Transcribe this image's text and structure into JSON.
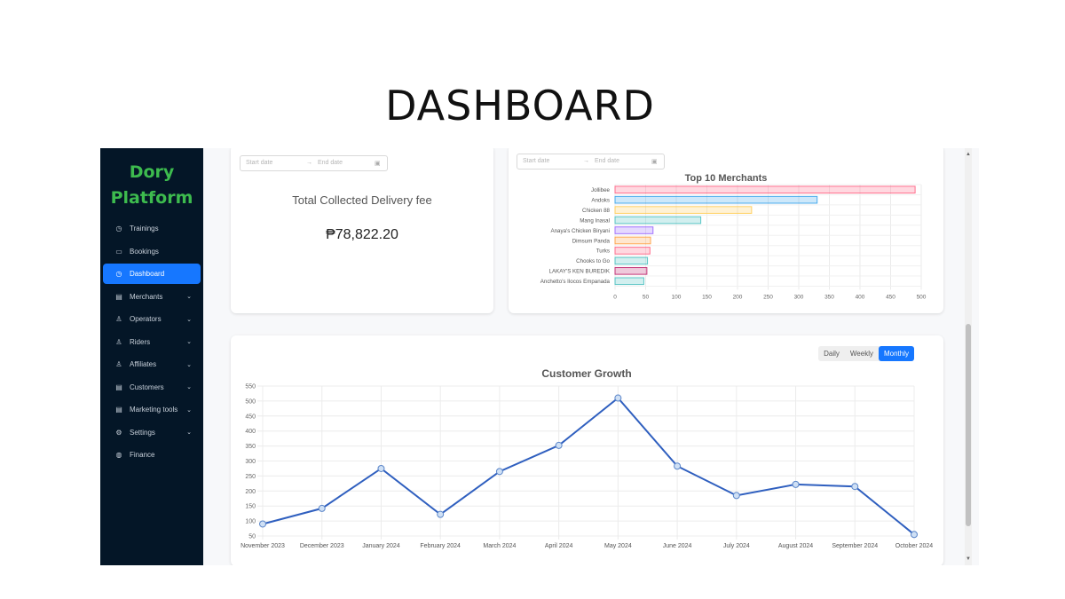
{
  "page_title": "DASHBOARD",
  "sidebar": {
    "brand": "Dory Platform",
    "items": [
      {
        "label": "Trainings",
        "icon": "clock-icon",
        "glyph": "◷",
        "chevron": false,
        "active": false
      },
      {
        "label": "Bookings",
        "icon": "calendar-icon",
        "glyph": "▭",
        "chevron": false,
        "active": false
      },
      {
        "label": "Dashboard",
        "icon": "dashboard-icon",
        "glyph": "◷",
        "chevron": false,
        "active": true
      },
      {
        "label": "Merchants",
        "icon": "table-icon",
        "glyph": "▤",
        "chevron": true,
        "active": false
      },
      {
        "label": "Operators",
        "icon": "user-icon",
        "glyph": "♙",
        "chevron": true,
        "active": false
      },
      {
        "label": "Riders",
        "icon": "user-icon",
        "glyph": "♙",
        "chevron": true,
        "active": false
      },
      {
        "label": "Affiliates",
        "icon": "user-icon",
        "glyph": "♙",
        "chevron": true,
        "active": false
      },
      {
        "label": "Customers",
        "icon": "table-icon",
        "glyph": "▤",
        "chevron": true,
        "active": false
      },
      {
        "label": "Marketing tools",
        "icon": "table-icon",
        "glyph": "▤",
        "chevron": true,
        "active": false
      },
      {
        "label": "Settings",
        "icon": "gear-icon",
        "glyph": "⚙",
        "chevron": true,
        "active": false
      },
      {
        "label": "Finance",
        "icon": "wallet-icon",
        "glyph": "◍",
        "chevron": false,
        "active": false
      }
    ]
  },
  "delivery_card": {
    "start_placeholder": "Start date",
    "end_placeholder": "End date",
    "title": "Total Collected Delivery fee",
    "value": "₱78,822.20"
  },
  "merchants_card": {
    "start_placeholder": "Start date",
    "end_placeholder": "End date"
  },
  "growth_card": {
    "toggles": [
      "Daily",
      "Weekly",
      "Monthly"
    ],
    "selected": "Monthly"
  },
  "colors": {
    "sidebar_bg": "#041627",
    "brand_green": "#3dbb4e",
    "accent_blue": "#1677ff",
    "line_blue": "#2f5fbf"
  },
  "chart_data": [
    {
      "type": "bar",
      "orientation": "horizontal",
      "title": "Top 10 Merchants",
      "categories": [
        "Jollibee",
        "Andoks",
        "Chicken 88",
        "Mang Inasal",
        "Anaya's Chicken Biryani",
        "Dimsum Panda",
        "Turks",
        "Chooks to Go",
        "LAKAY'S KEN BUREDIK",
        "Anchetto's Ilocos Empanada"
      ],
      "values": [
        490,
        330,
        223,
        140,
        62,
        58,
        57,
        53,
        52,
        47
      ],
      "colors": [
        "#ff6384",
        "#36a2eb",
        "#ffcd56",
        "#4bc0c0",
        "#9966ff",
        "#ff9f40",
        "#ff6384",
        "#4bc0c0",
        "#c0266e",
        "#4bc0c0"
      ],
      "xlim": [
        0,
        500
      ],
      "xticks": [
        0,
        50,
        100,
        150,
        200,
        250,
        300,
        350,
        400,
        450,
        500
      ],
      "grid": true
    },
    {
      "type": "line",
      "title": "Customer Growth",
      "categories": [
        "November 2023",
        "December 2023",
        "January 2024",
        "February 2024",
        "March 2024",
        "April 2024",
        "May 2024",
        "June 2024",
        "July 2024",
        "August 2024",
        "September 2024",
        "October 2024"
      ],
      "values": [
        90,
        142,
        275,
        122,
        265,
        352,
        510,
        283,
        185,
        222,
        215,
        55
      ],
      "ylim": [
        50,
        550
      ],
      "yticks": [
        50,
        100,
        150,
        200,
        250,
        300,
        350,
        400,
        450,
        500,
        550
      ],
      "grid": true
    }
  ]
}
